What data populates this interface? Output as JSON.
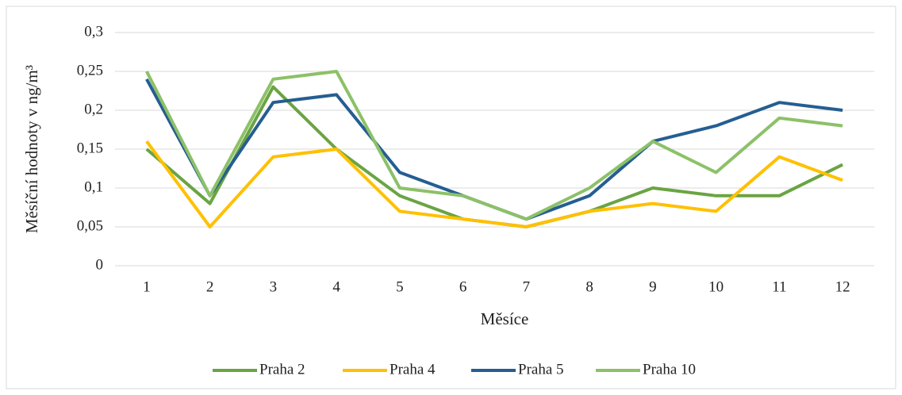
{
  "chart_data": {
    "type": "line",
    "y_label": "Měsíční hodnoty v ng/m³",
    "x_label": "Měsíce",
    "categories": [
      "1",
      "2",
      "3",
      "4",
      "5",
      "6",
      "7",
      "8",
      "9",
      "10",
      "11",
      "12"
    ],
    "series": [
      {
        "name": "Praha 2",
        "color": "#6aa443",
        "values": [
          0.15,
          0.08,
          0.23,
          0.15,
          0.09,
          0.06,
          0.05,
          0.07,
          0.1,
          0.09,
          0.09,
          0.13
        ]
      },
      {
        "name": "Praha 4",
        "color": "#ffc000",
        "values": [
          0.16,
          0.05,
          0.14,
          0.15,
          0.07,
          0.06,
          0.05,
          0.07,
          0.08,
          0.07,
          0.14,
          0.11
        ]
      },
      {
        "name": "Praha 5",
        "color": "#255e91",
        "values": [
          0.24,
          0.09,
          0.21,
          0.22,
          0.12,
          0.09,
          0.06,
          0.09,
          0.16,
          0.18,
          0.21,
          0.2
        ]
      },
      {
        "name": "Praha 10",
        "color": "#8cc168",
        "values": [
          0.25,
          0.09,
          0.24,
          0.25,
          0.1,
          0.09,
          0.06,
          0.1,
          0.16,
          0.12,
          0.19,
          0.18
        ]
      }
    ],
    "ylim": [
      0,
      0.3
    ],
    "yticks": [
      {
        "value": 0,
        "label": "0"
      },
      {
        "value": 0.05,
        "label": "0,05"
      },
      {
        "value": 0.1,
        "label": "0,1"
      },
      {
        "value": 0.15,
        "label": "0,15"
      },
      {
        "value": 0.2,
        "label": "0,2"
      },
      {
        "value": 0.25,
        "label": "0,25"
      },
      {
        "value": 0.3,
        "label": "0,3"
      }
    ],
    "grid": true,
    "legend": "bottom"
  }
}
